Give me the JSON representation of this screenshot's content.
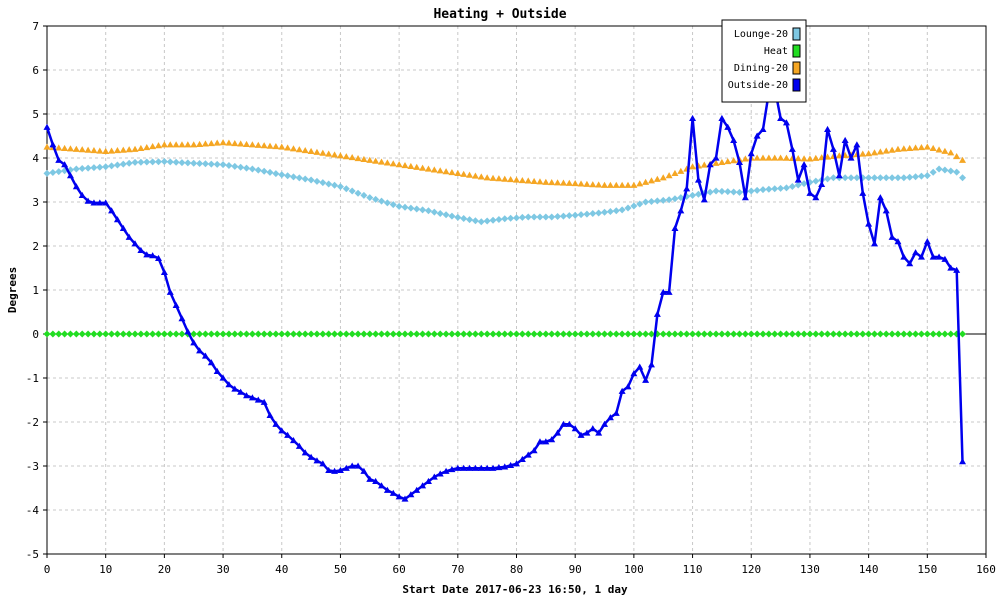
{
  "chart_data": {
    "type": "line",
    "title": "Heating + Outside",
    "xlabel": "Start Date 2017-06-23 16:50, 1 day",
    "ylabel": "Degrees",
    "xlim": [
      0,
      160
    ],
    "ylim": [
      -5,
      7
    ],
    "x_ticks": [
      0,
      10,
      20,
      30,
      40,
      50,
      60,
      70,
      80,
      90,
      100,
      110,
      120,
      130,
      140,
      150,
      160
    ],
    "y_ticks": [
      -5,
      -4,
      -3,
      -2,
      -1,
      0,
      1,
      2,
      3,
      4,
      5,
      6,
      7
    ],
    "grid": true,
    "legend_position": "top-right",
    "series": [
      {
        "name": "Lounge-20",
        "color": "#7ec8e3",
        "marker": "diamond",
        "keypoints": [
          [
            0,
            3.65
          ],
          [
            5,
            3.75
          ],
          [
            10,
            3.8
          ],
          [
            15,
            3.9
          ],
          [
            20,
            3.92
          ],
          [
            25,
            3.88
          ],
          [
            30,
            3.85
          ],
          [
            35,
            3.75
          ],
          [
            40,
            3.62
          ],
          [
            45,
            3.5
          ],
          [
            50,
            3.35
          ],
          [
            55,
            3.1
          ],
          [
            60,
            2.9
          ],
          [
            65,
            2.8
          ],
          [
            70,
            2.65
          ],
          [
            74,
            2.55
          ],
          [
            78,
            2.62
          ],
          [
            82,
            2.66
          ],
          [
            86,
            2.66
          ],
          [
            90,
            2.7
          ],
          [
            94,
            2.75
          ],
          [
            98,
            2.82
          ],
          [
            102,
            3.0
          ],
          [
            106,
            3.05
          ],
          [
            110,
            3.15
          ],
          [
            114,
            3.25
          ],
          [
            118,
            3.22
          ],
          [
            122,
            3.28
          ],
          [
            126,
            3.32
          ],
          [
            130,
            3.45
          ],
          [
            134,
            3.55
          ],
          [
            138,
            3.55
          ],
          [
            142,
            3.55
          ],
          [
            146,
            3.55
          ],
          [
            150,
            3.6
          ],
          [
            152,
            3.75
          ],
          [
            155,
            3.68
          ],
          [
            156,
            3.55
          ]
        ]
      },
      {
        "name": "Heat",
        "color": "#22dd22",
        "marker": "diamond",
        "keypoints": [
          [
            0,
            0
          ],
          [
            156,
            0
          ]
        ]
      },
      {
        "name": "Dining-20",
        "color": "#f5a623",
        "marker": "triangle",
        "keypoints": [
          [
            0,
            4.25
          ],
          [
            5,
            4.2
          ],
          [
            10,
            4.15
          ],
          [
            15,
            4.2
          ],
          [
            20,
            4.3
          ],
          [
            25,
            4.3
          ],
          [
            30,
            4.35
          ],
          [
            35,
            4.3
          ],
          [
            40,
            4.25
          ],
          [
            45,
            4.15
          ],
          [
            50,
            4.05
          ],
          [
            55,
            3.95
          ],
          [
            60,
            3.85
          ],
          [
            65,
            3.75
          ],
          [
            70,
            3.65
          ],
          [
            75,
            3.55
          ],
          [
            80,
            3.5
          ],
          [
            85,
            3.45
          ],
          [
            90,
            3.42
          ],
          [
            95,
            3.38
          ],
          [
            100,
            3.38
          ],
          [
            105,
            3.55
          ],
          [
            110,
            3.8
          ],
          [
            115,
            3.9
          ],
          [
            120,
            4.0
          ],
          [
            125,
            4.0
          ],
          [
            130,
            3.98
          ],
          [
            135,
            4.05
          ],
          [
            140,
            4.1
          ],
          [
            145,
            4.2
          ],
          [
            150,
            4.25
          ],
          [
            154,
            4.12
          ],
          [
            156,
            3.95
          ]
        ]
      },
      {
        "name": "Outside-20",
        "color": "#0000ee",
        "marker": "triangle",
        "keypoints": [
          [
            0,
            4.7
          ],
          [
            1,
            4.3
          ],
          [
            2,
            3.95
          ],
          [
            3,
            3.85
          ],
          [
            4,
            3.6
          ],
          [
            5,
            3.35
          ],
          [
            6,
            3.15
          ],
          [
            7,
            3.02
          ],
          [
            8,
            2.98
          ],
          [
            9,
            2.98
          ],
          [
            10,
            2.98
          ],
          [
            11,
            2.8
          ],
          [
            12,
            2.6
          ],
          [
            13,
            2.4
          ],
          [
            14,
            2.2
          ],
          [
            15,
            2.05
          ],
          [
            16,
            1.9
          ],
          [
            17,
            1.8
          ],
          [
            18,
            1.78
          ],
          [
            19,
            1.72
          ],
          [
            20,
            1.4
          ],
          [
            21,
            0.95
          ],
          [
            22,
            0.65
          ],
          [
            23,
            0.35
          ],
          [
            24,
            0.05
          ],
          [
            25,
            -0.2
          ],
          [
            26,
            -0.38
          ],
          [
            27,
            -0.5
          ],
          [
            28,
            -0.65
          ],
          [
            29,
            -0.85
          ],
          [
            30,
            -1.0
          ],
          [
            31,
            -1.15
          ],
          [
            32,
            -1.25
          ],
          [
            33,
            -1.32
          ],
          [
            34,
            -1.4
          ],
          [
            35,
            -1.45
          ],
          [
            36,
            -1.5
          ],
          [
            37,
            -1.55
          ],
          [
            38,
            -1.85
          ],
          [
            39,
            -2.05
          ],
          [
            40,
            -2.2
          ],
          [
            41,
            -2.3
          ],
          [
            42,
            -2.42
          ],
          [
            43,
            -2.55
          ],
          [
            44,
            -2.7
          ],
          [
            45,
            -2.8
          ],
          [
            46,
            -2.88
          ],
          [
            47,
            -2.95
          ],
          [
            48,
            -3.1
          ],
          [
            49,
            -3.12
          ],
          [
            50,
            -3.1
          ],
          [
            51,
            -3.05
          ],
          [
            52,
            -3.0
          ],
          [
            53,
            -3.0
          ],
          [
            54,
            -3.12
          ],
          [
            55,
            -3.3
          ],
          [
            56,
            -3.35
          ],
          [
            57,
            -3.45
          ],
          [
            58,
            -3.55
          ],
          [
            59,
            -3.62
          ],
          [
            60,
            -3.7
          ],
          [
            61,
            -3.75
          ],
          [
            62,
            -3.65
          ],
          [
            63,
            -3.55
          ],
          [
            64,
            -3.45
          ],
          [
            65,
            -3.35
          ],
          [
            66,
            -3.25
          ],
          [
            67,
            -3.18
          ],
          [
            68,
            -3.12
          ],
          [
            69,
            -3.08
          ],
          [
            70,
            -3.05
          ],
          [
            72,
            -3.05
          ],
          [
            74,
            -3.05
          ],
          [
            76,
            -3.05
          ],
          [
            78,
            -3.02
          ],
          [
            80,
            -2.95
          ],
          [
            81,
            -2.85
          ],
          [
            82,
            -2.75
          ],
          [
            83,
            -2.65
          ],
          [
            84,
            -2.45
          ],
          [
            85,
            -2.45
          ],
          [
            86,
            -2.4
          ],
          [
            87,
            -2.25
          ],
          [
            88,
            -2.05
          ],
          [
            89,
            -2.05
          ],
          [
            90,
            -2.15
          ],
          [
            91,
            -2.3
          ],
          [
            92,
            -2.25
          ],
          [
            93,
            -2.15
          ],
          [
            94,
            -2.25
          ],
          [
            95,
            -2.05
          ],
          [
            96,
            -1.9
          ],
          [
            97,
            -1.8
          ],
          [
            98,
            -1.3
          ],
          [
            99,
            -1.2
          ],
          [
            100,
            -0.9
          ],
          [
            101,
            -0.75
          ],
          [
            102,
            -1.05
          ],
          [
            103,
            -0.7
          ],
          [
            104,
            0.45
          ],
          [
            105,
            0.95
          ],
          [
            106,
            0.95
          ],
          [
            107,
            2.4
          ],
          [
            108,
            2.8
          ],
          [
            109,
            3.3
          ],
          [
            110,
            4.9
          ],
          [
            111,
            3.5
          ],
          [
            112,
            3.05
          ],
          [
            113,
            3.85
          ],
          [
            114,
            4.0
          ],
          [
            115,
            4.9
          ],
          [
            116,
            4.7
          ],
          [
            117,
            4.4
          ],
          [
            118,
            3.9
          ],
          [
            119,
            3.1
          ],
          [
            120,
            4.1
          ],
          [
            121,
            4.5
          ],
          [
            122,
            4.65
          ],
          [
            123,
            5.5
          ],
          [
            124,
            5.6
          ],
          [
            125,
            4.9
          ],
          [
            126,
            4.8
          ],
          [
            127,
            4.2
          ],
          [
            128,
            3.5
          ],
          [
            129,
            3.85
          ],
          [
            130,
            3.2
          ],
          [
            131,
            3.1
          ],
          [
            132,
            3.4
          ],
          [
            133,
            4.65
          ],
          [
            134,
            4.2
          ],
          [
            135,
            3.6
          ],
          [
            136,
            4.4
          ],
          [
            137,
            4.0
          ],
          [
            138,
            4.3
          ],
          [
            139,
            3.2
          ],
          [
            140,
            2.5
          ],
          [
            141,
            2.05
          ],
          [
            142,
            3.1
          ],
          [
            143,
            2.8
          ],
          [
            144,
            2.2
          ],
          [
            145,
            2.1
          ],
          [
            146,
            1.75
          ],
          [
            147,
            1.6
          ],
          [
            148,
            1.85
          ],
          [
            149,
            1.75
          ],
          [
            150,
            2.1
          ],
          [
            151,
            1.75
          ],
          [
            152,
            1.75
          ],
          [
            153,
            1.7
          ],
          [
            154,
            1.5
          ],
          [
            155,
            1.45
          ],
          [
            156,
            -2.9
          ]
        ]
      }
    ]
  }
}
